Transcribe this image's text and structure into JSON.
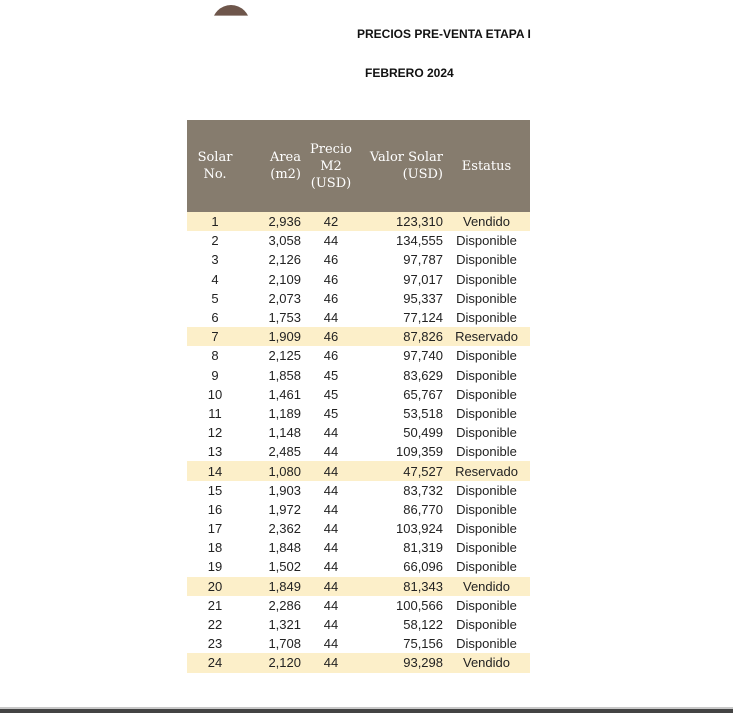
{
  "document": {
    "title": "PRECIOS PRE-VENTA ETAPA I",
    "subtitle": "FEBRERO 2024"
  },
  "colors": {
    "header_bg": "#867c6e",
    "highlight_row": "#fcefc9"
  },
  "table": {
    "headers": [
      [
        "Solar",
        "No."
      ],
      [
        "Area",
        "(m2)"
      ],
      [
        "Precio",
        "M2",
        "(USD)"
      ],
      [
        "Valor Solar",
        "(USD)"
      ],
      [
        "Estatus"
      ]
    ],
    "rows": [
      [
        "1",
        "2,936",
        "42",
        "123,310",
        "Vendido"
      ],
      [
        "2",
        "3,058",
        "44",
        "134,555",
        "Disponible"
      ],
      [
        "3",
        "2,126",
        "46",
        "97,787",
        "Disponible"
      ],
      [
        "4",
        "2,109",
        "46",
        "97,017",
        "Disponible"
      ],
      [
        "5",
        "2,073",
        "46",
        "95,337",
        "Disponible"
      ],
      [
        "6",
        "1,753",
        "44",
        "77,124",
        "Disponible"
      ],
      [
        "7",
        "1,909",
        "46",
        "87,826",
        "Reservado"
      ],
      [
        "8",
        "2,125",
        "46",
        "97,740",
        "Disponible"
      ],
      [
        "9",
        "1,858",
        "45",
        "83,629",
        "Disponible"
      ],
      [
        "10",
        "1,461",
        "45",
        "65,767",
        "Disponible"
      ],
      [
        "11",
        "1,189",
        "45",
        "53,518",
        "Disponible"
      ],
      [
        "12",
        "1,148",
        "44",
        "50,499",
        "Disponible"
      ],
      [
        "13",
        "2,485",
        "44",
        "109,359",
        "Disponible"
      ],
      [
        "14",
        "1,080",
        "44",
        "47,527",
        "Reservado"
      ],
      [
        "15",
        "1,903",
        "44",
        "83,732",
        "Disponible"
      ],
      [
        "16",
        "1,972",
        "44",
        "86,770",
        "Disponible"
      ],
      [
        "17",
        "2,362",
        "44",
        "103,924",
        "Disponible"
      ],
      [
        "18",
        "1,848",
        "44",
        "81,319",
        "Disponible"
      ],
      [
        "19",
        "1,502",
        "44",
        "66,096",
        "Disponible"
      ],
      [
        "20",
        "1,849",
        "44",
        "81,343",
        "Vendido"
      ],
      [
        "21",
        "2,286",
        "44",
        "100,566",
        "Disponible"
      ],
      [
        "22",
        "1,321",
        "44",
        "58,122",
        "Disponible"
      ],
      [
        "23",
        "1,708",
        "44",
        "75,156",
        "Disponible"
      ],
      [
        "24",
        "2,120",
        "44",
        "93,298",
        "Vendido"
      ]
    ]
  }
}
